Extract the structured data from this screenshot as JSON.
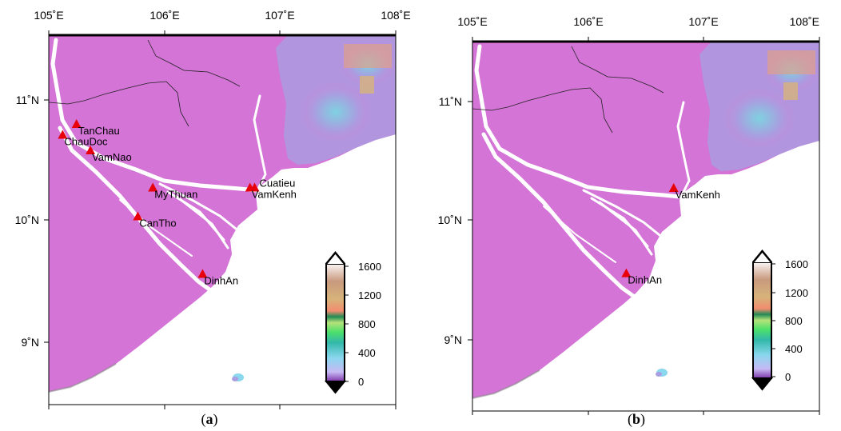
{
  "panels": [
    {
      "id": "a",
      "caption_open": "(",
      "caption_letter": "a",
      "caption_close": ")",
      "lon_labels": [
        "105˚E",
        "106˚E",
        "107˚E",
        "108˚E"
      ],
      "lat_labels": [
        "11˚N",
        "10˚N",
        "9˚N"
      ],
      "stations": [
        {
          "name": "TanChau",
          "lon": 105.24,
          "lat": 10.8
        },
        {
          "name": "ChauDoc",
          "lon": 105.12,
          "lat": 10.71
        },
        {
          "name": "VamNao",
          "lon": 105.36,
          "lat": 10.58
        },
        {
          "name": "MyThuan",
          "lon": 105.9,
          "lat": 10.27
        },
        {
          "name": "Cuatieu",
          "lon": 106.78,
          "lat": 10.27
        },
        {
          "name": "VamKenh",
          "lon": 106.74,
          "lat": 10.27
        },
        {
          "name": "CanTho",
          "lon": 105.77,
          "lat": 10.03
        },
        {
          "name": "DinhAn",
          "lon": 106.33,
          "lat": 9.55
        }
      ],
      "colorbar_labels": [
        "1600",
        "1200",
        "800",
        "400",
        "0"
      ]
    },
    {
      "id": "b",
      "caption_open": "(",
      "caption_letter": "b",
      "caption_close": ")",
      "lon_labels": [
        "105˚E",
        "106˚E",
        "107˚E",
        "108˚E"
      ],
      "lat_labels": [
        "11˚N",
        "10˚N",
        "9˚N"
      ],
      "stations": [
        {
          "name": "VamKenh",
          "lon": 106.74,
          "lat": 10.27
        },
        {
          "name": "DinhAn",
          "lon": 106.33,
          "lat": 9.55
        }
      ],
      "colorbar_labels": [
        "1600",
        "1200",
        "800",
        "400",
        "0"
      ]
    }
  ],
  "colors": {
    "land": "#d374d6",
    "sea": "#ffffff",
    "station_marker": "#e8000b",
    "highland": "#a99ee0"
  }
}
